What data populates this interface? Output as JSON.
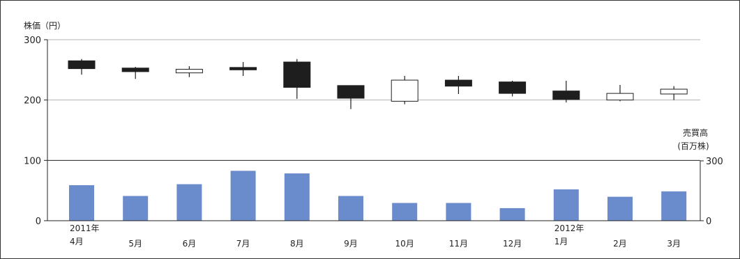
{
  "chart_data": {
    "type": "candlestick",
    "months": [
      {
        "label": "4月",
        "year": "2011年"
      },
      {
        "label": "5月",
        "year": ""
      },
      {
        "label": "6月",
        "year": ""
      },
      {
        "label": "7月",
        "year": ""
      },
      {
        "label": "8月",
        "year": ""
      },
      {
        "label": "9月",
        "year": ""
      },
      {
        "label": "10月",
        "year": ""
      },
      {
        "label": "11月",
        "year": ""
      },
      {
        "label": "12月",
        "year": ""
      },
      {
        "label": "1月",
        "year": "2012年"
      },
      {
        "label": "2月",
        "year": ""
      },
      {
        "label": "3月",
        "year": ""
      }
    ],
    "price": {
      "axis_title": "株価（円）",
      "ylim": [
        0,
        300
      ],
      "ticks": [
        0,
        100,
        200,
        300
      ],
      "gridlines": [
        200,
        300
      ],
      "ohlc": [
        {
          "open": 265,
          "high": 268,
          "low": 242,
          "close": 252
        },
        {
          "open": 253,
          "high": 255,
          "low": 235,
          "close": 247
        },
        {
          "open": 245,
          "high": 256,
          "low": 238,
          "close": 251
        },
        {
          "open": 254,
          "high": 263,
          "low": 240,
          "close": 250
        },
        {
          "open": 263,
          "high": 268,
          "low": 202,
          "close": 221
        },
        {
          "open": 224,
          "high": 224,
          "low": 185,
          "close": 203
        },
        {
          "open": 198,
          "high": 240,
          "low": 193,
          "close": 233
        },
        {
          "open": 233,
          "high": 240,
          "low": 210,
          "close": 223
        },
        {
          "open": 230,
          "high": 232,
          "low": 206,
          "close": 211
        },
        {
          "open": 215,
          "high": 232,
          "low": 196,
          "close": 201
        },
        {
          "open": 200,
          "high": 225,
          "low": 198,
          "close": 211
        },
        {
          "open": 210,
          "high": 223,
          "low": 200,
          "close": 218
        }
      ]
    },
    "volume": {
      "axis_title_line1": "売買高",
      "axis_title_line2": "(百万株)",
      "ylim": [
        0,
        300
      ],
      "ticks": [
        0,
        300
      ],
      "values": [
        178,
        124,
        183,
        250,
        237,
        124,
        89,
        89,
        63,
        157,
        120,
        147
      ],
      "color": "#6b8ccc"
    },
    "colors": {
      "bearish_body": "#1e1e1e",
      "bullish_body": "#ffffff",
      "wick": "#1e1e1e",
      "grid": "#b3b3b3",
      "axis": "#222222"
    }
  }
}
